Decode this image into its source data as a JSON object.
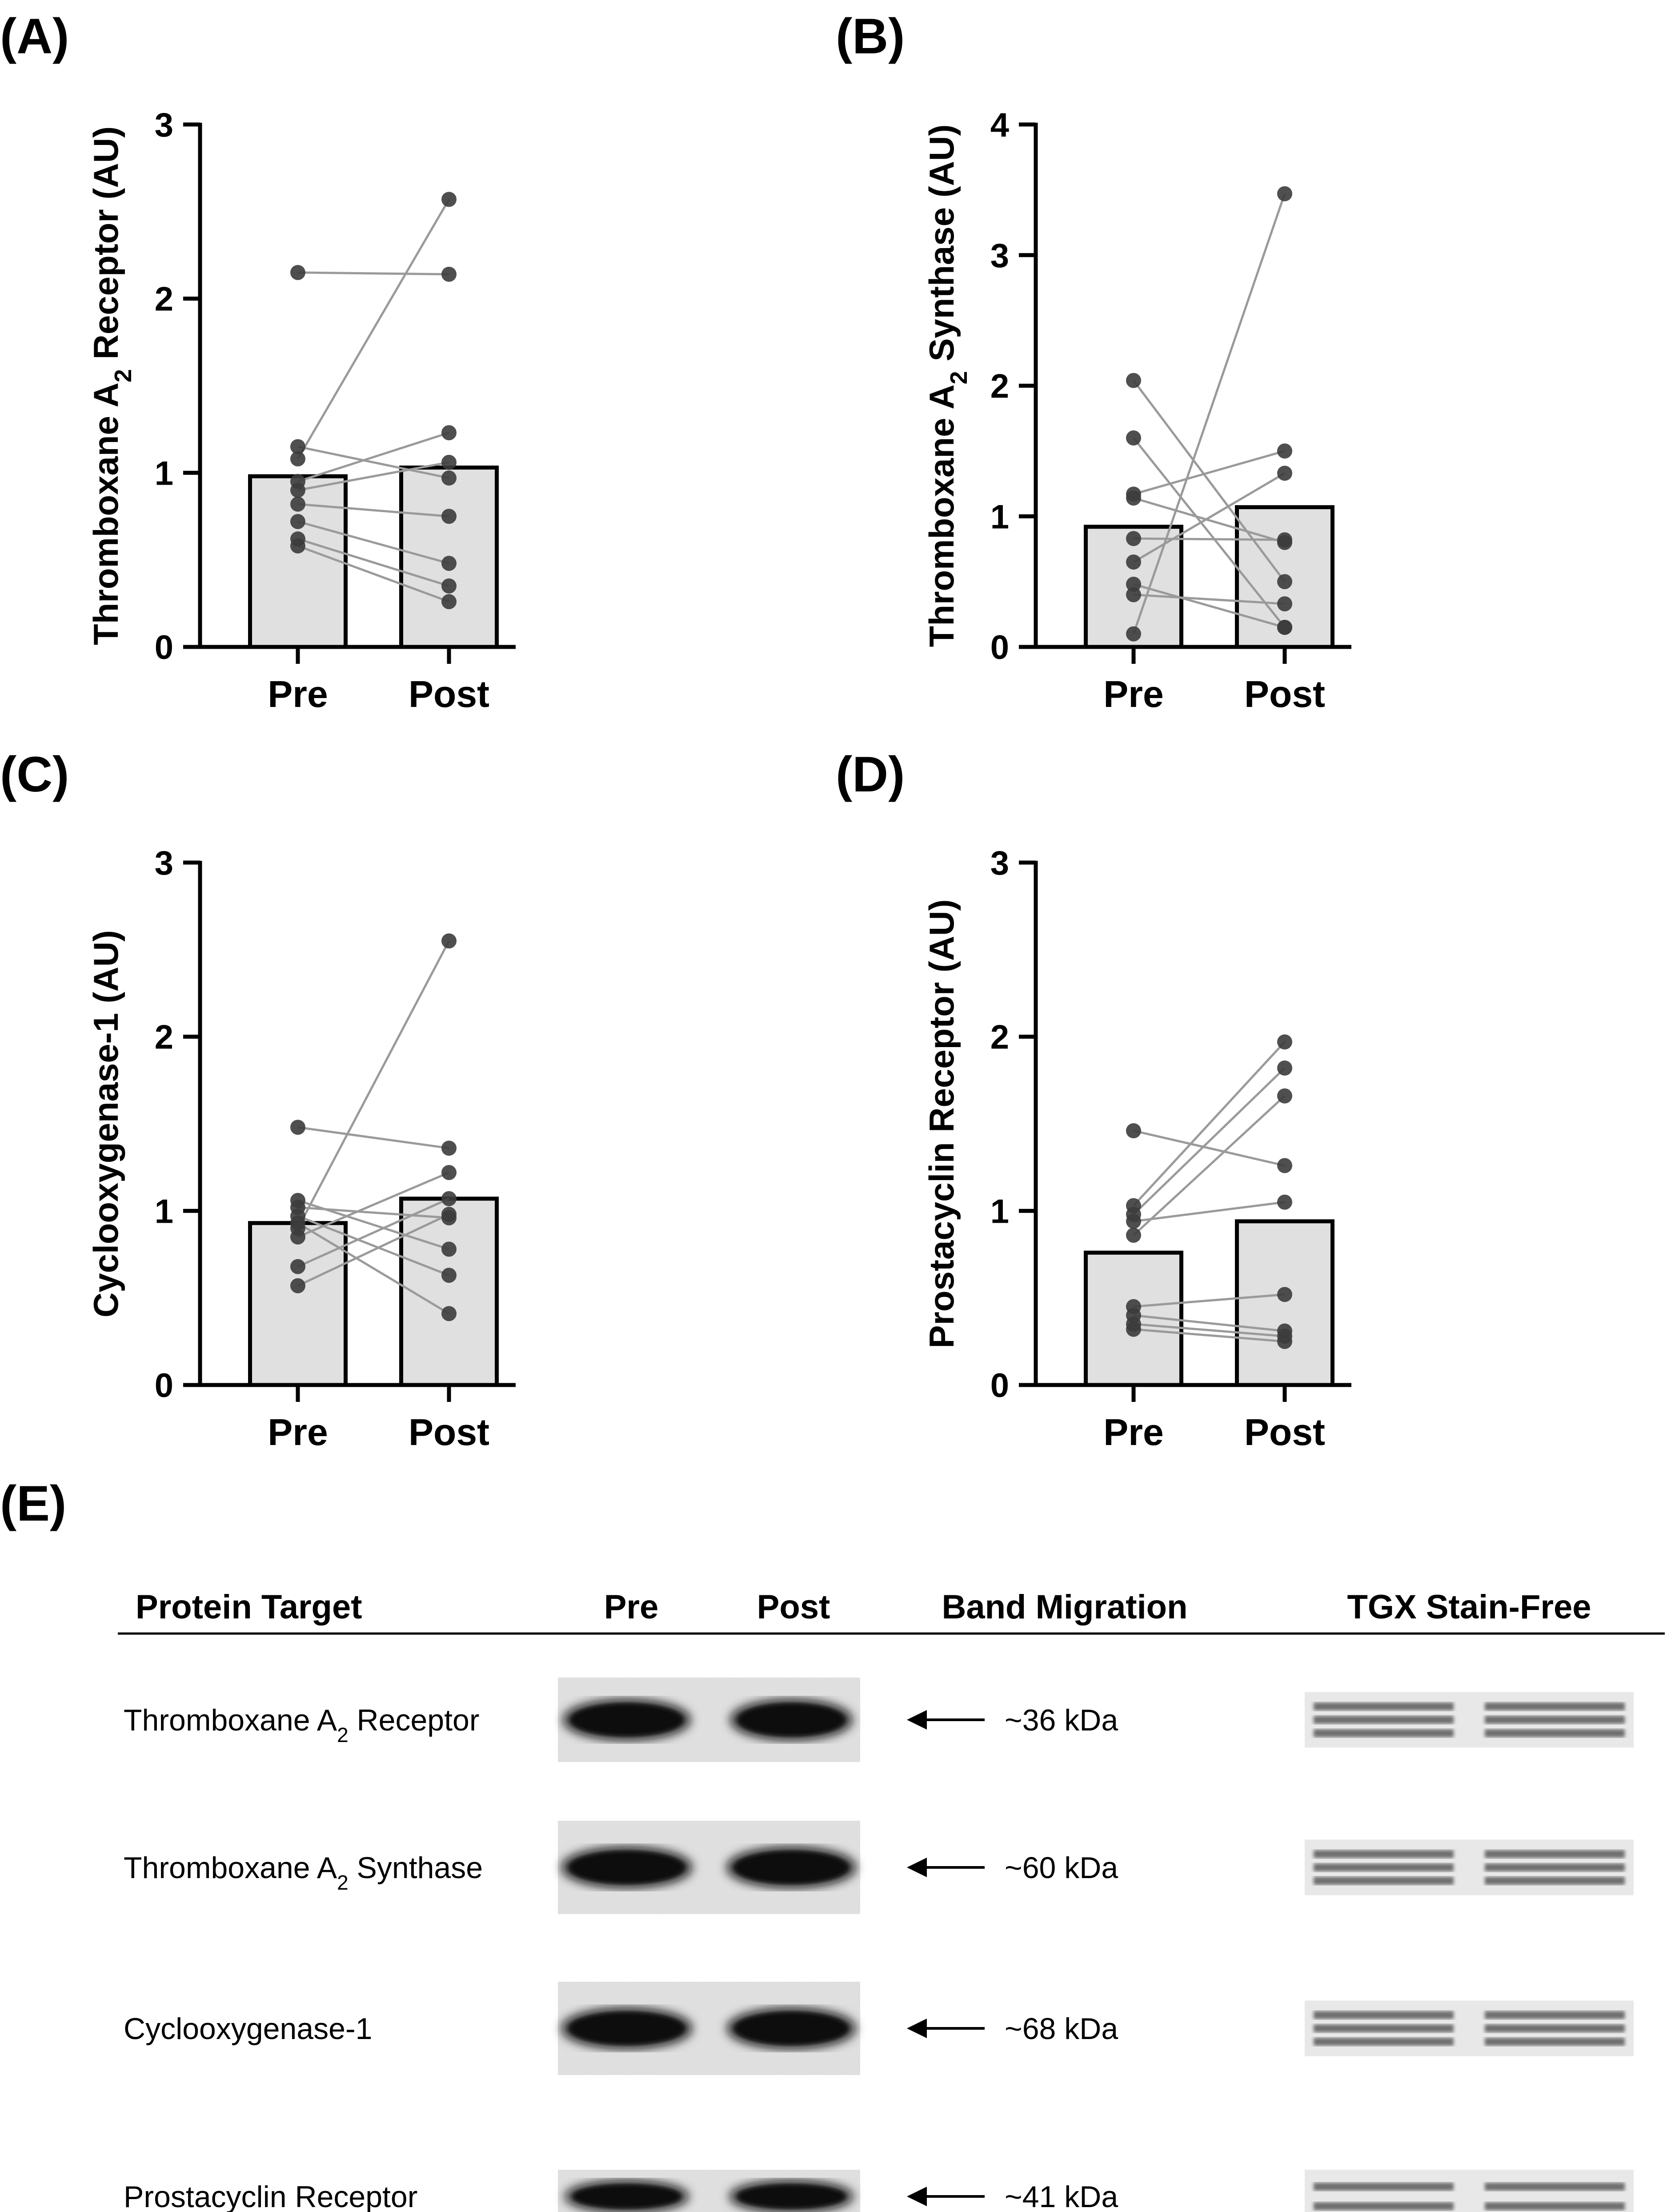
{
  "chart_data": [
    {
      "type": "bar",
      "panel": "(A)",
      "ylabel_main": "Thromboxane A",
      "ylabel_sub": "2",
      "ylabel_tail": " Receptor (AU)",
      "categories": [
        "Pre",
        "Post"
      ],
      "values": [
        0.98,
        1.03
      ],
      "ylim": [
        0,
        3
      ],
      "yticks": [
        "0",
        "1",
        "2",
        "3"
      ],
      "pairs": [
        [
          2.15,
          2.14
        ],
        [
          1.15,
          0.97
        ],
        [
          1.08,
          2.57
        ],
        [
          0.95,
          1.23
        ],
        [
          0.9,
          1.06
        ],
        [
          0.82,
          0.75
        ],
        [
          0.72,
          0.48
        ],
        [
          0.62,
          0.35
        ],
        [
          0.58,
          0.26
        ]
      ]
    },
    {
      "type": "bar",
      "panel": "(B)",
      "ylabel_main": "Thromboxane A",
      "ylabel_sub": "2",
      "ylabel_tail": " Synthase (AU)",
      "categories": [
        "Pre",
        "Post"
      ],
      "values": [
        0.92,
        1.07
      ],
      "ylim": [
        0,
        4
      ],
      "yticks": [
        "0",
        "1",
        "2",
        "3",
        "4"
      ],
      "pairs": [
        [
          2.04,
          0.5
        ],
        [
          1.6,
          0.15
        ],
        [
          1.17,
          1.5
        ],
        [
          1.14,
          0.8
        ],
        [
          0.83,
          0.82
        ],
        [
          0.65,
          1.33
        ],
        [
          0.48,
          0.15
        ],
        [
          0.4,
          0.33
        ],
        [
          0.1,
          3.47
        ]
      ]
    },
    {
      "type": "bar",
      "panel": "(C)",
      "ylabel_main": "Cyclooxygenase-1 (AU)",
      "ylabel_sub": "",
      "ylabel_tail": "",
      "categories": [
        "Pre",
        "Post"
      ],
      "values": [
        0.93,
        1.07
      ],
      "ylim": [
        0,
        3
      ],
      "yticks": [
        "0",
        "1",
        "2",
        "3"
      ],
      "pairs": [
        [
          1.48,
          1.36
        ],
        [
          1.06,
          0.78
        ],
        [
          1.02,
          0.96
        ],
        [
          0.97,
          0.63
        ],
        [
          0.93,
          0.41
        ],
        [
          0.9,
          2.55
        ],
        [
          0.85,
          1.22
        ],
        [
          0.68,
          1.07
        ],
        [
          0.57,
          0.98
        ]
      ]
    },
    {
      "type": "bar",
      "panel": "(D)",
      "ylabel_main": "Prostacyclin Receptor (AU)",
      "ylabel_sub": "",
      "ylabel_tail": "",
      "categories": [
        "Pre",
        "Post"
      ],
      "values": [
        0.76,
        0.94
      ],
      "ylim": [
        0,
        3
      ],
      "yticks": [
        "0",
        "1",
        "2",
        "3"
      ],
      "pairs": [
        [
          1.46,
          1.26
        ],
        [
          1.03,
          1.97
        ],
        [
          0.98,
          1.82
        ],
        [
          0.94,
          1.05
        ],
        [
          0.86,
          1.66
        ],
        [
          0.45,
          0.52
        ],
        [
          0.4,
          0.31
        ],
        [
          0.35,
          0.28
        ],
        [
          0.32,
          0.25
        ]
      ]
    }
  ],
  "blot": {
    "panel": "(E)",
    "headers": {
      "target": "Protein Target",
      "pre": "Pre",
      "post": "Post",
      "migration": "Band Migration",
      "stain": "TGX Stain-Free"
    },
    "rows": [
      {
        "name_main": "Thromboxane A",
        "name_sub": "2",
        "name_tail": " Receptor",
        "kda": "~36 kDa",
        "band_pre": 0.9,
        "band_post": 0.82
      },
      {
        "name_main": "Thromboxane A",
        "name_sub": "2",
        "name_tail": " Synthase",
        "kda": "~60 kDa",
        "band_pre": 0.95,
        "band_post": 0.93
      },
      {
        "name_main": "Cyclooxygenase-1",
        "name_sub": "",
        "name_tail": "",
        "kda": "~68 kDa",
        "band_pre": 0.95,
        "band_post": 0.92
      },
      {
        "name_main": "Prostacyclin Receptor",
        "name_sub": "",
        "name_tail": "",
        "kda": "~41 kDa",
        "band_pre": 0.85,
        "band_post": 0.85
      }
    ]
  }
}
